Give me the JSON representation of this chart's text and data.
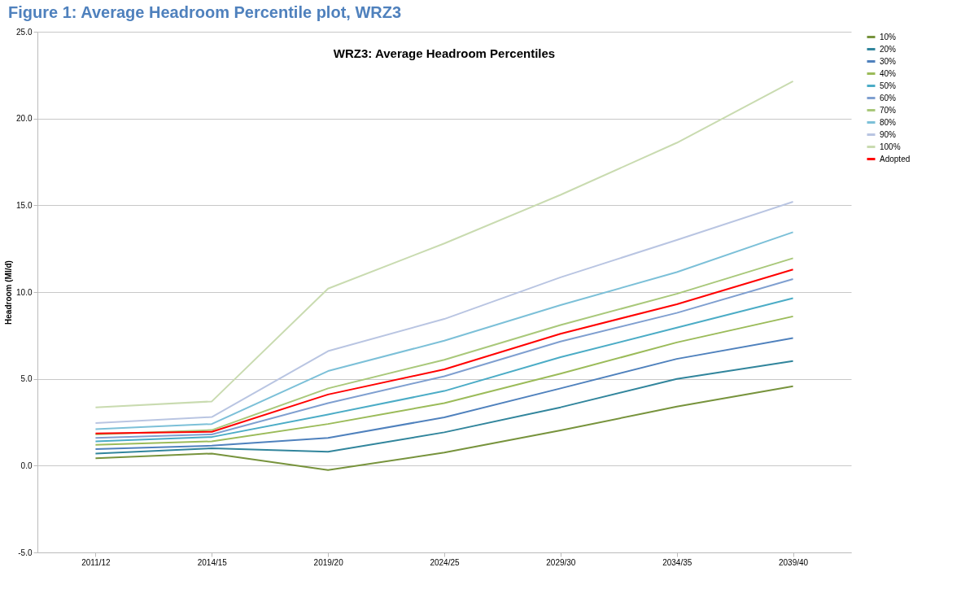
{
  "chart_data": {
    "type": "line",
    "title": "WRZ3: Average Headroom Percentiles",
    "ylabel": "Headroom (Ml/d)",
    "annotations": [
      "Figure 1: Average Headroom Percentile plot, WRZ3"
    ],
    "categories": [
      "2011/12",
      "2014/15",
      "2019/20",
      "2024/25",
      "2029/30",
      "2034/35",
      "2039/40"
    ],
    "ylim": [
      -5,
      25
    ],
    "yticks": [
      {
        "value": -5,
        "label": "-5.0"
      },
      {
        "value": 0,
        "label": "0.0"
      },
      {
        "value": 5,
        "label": "5.0"
      },
      {
        "value": 10,
        "label": "10.0"
      },
      {
        "value": 15,
        "label": "15.0"
      },
      {
        "value": 20,
        "label": "20.0"
      },
      {
        "value": 25,
        "label": "25.0"
      }
    ],
    "grid": "y",
    "legend": "right",
    "line_style": "solid",
    "marker": "none",
    "series": [
      {
        "name": "10%",
        "color": "#77933c",
        "values": [
          0.42,
          0.7,
          -0.25,
          0.75,
          2.03,
          3.4,
          4.57
        ]
      },
      {
        "name": "20%",
        "color": "#31859c",
        "values": [
          0.7,
          1.0,
          0.8,
          1.92,
          3.36,
          5.0,
          6.03
        ]
      },
      {
        "name": "30%",
        "color": "#4f81bd",
        "values": [
          0.95,
          1.15,
          1.6,
          2.78,
          4.45,
          6.15,
          7.35
        ]
      },
      {
        "name": "40%",
        "color": "#9bbb59",
        "values": [
          1.2,
          1.4,
          2.4,
          3.6,
          5.3,
          7.1,
          8.6
        ]
      },
      {
        "name": "50%",
        "color": "#4bacc6",
        "values": [
          1.4,
          1.65,
          2.95,
          4.3,
          6.25,
          7.95,
          9.65
        ]
      },
      {
        "name": "60%",
        "color": "#7f9fd0",
        "values": [
          1.6,
          1.8,
          3.6,
          5.15,
          7.15,
          8.8,
          10.75
        ]
      },
      {
        "name": "70%",
        "color": "#a9c87a",
        "values": [
          1.8,
          2.05,
          4.45,
          6.1,
          8.1,
          9.9,
          11.95
        ]
      },
      {
        "name": "80%",
        "color": "#7cc0d8",
        "values": [
          2.1,
          2.4,
          5.45,
          7.2,
          9.25,
          11.15,
          13.45
        ]
      },
      {
        "name": "90%",
        "color": "#b9c5e2",
        "values": [
          2.45,
          2.8,
          6.6,
          8.45,
          10.85,
          13.0,
          15.2
        ]
      },
      {
        "name": "100%",
        "color": "#c9dbb0",
        "values": [
          3.35,
          3.7,
          10.2,
          12.8,
          15.6,
          18.6,
          22.15
        ]
      },
      {
        "name": "Adopted",
        "color": "#ff0000",
        "values": [
          1.85,
          1.95,
          4.1,
          5.55,
          7.6,
          9.3,
          11.3
        ]
      }
    ]
  }
}
